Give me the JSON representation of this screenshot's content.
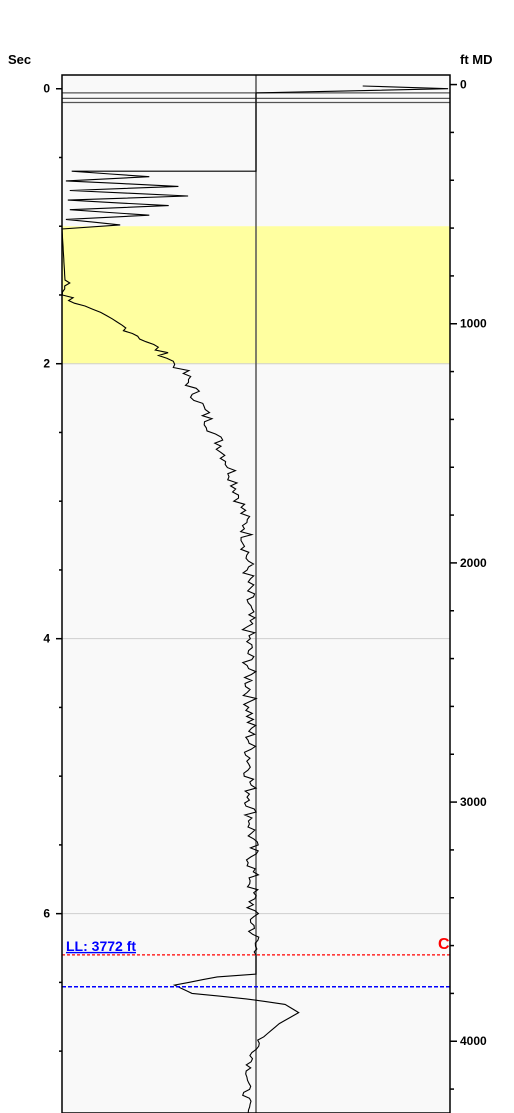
{
  "chart_data": {
    "type": "line",
    "left_axis": {
      "unit": "Sec",
      "range": [
        -0.1,
        7.45
      ],
      "major_ticks": [
        0,
        2,
        4,
        6
      ],
      "tick_labels": [
        "0",
        "2",
        "4",
        "6"
      ],
      "minor_step": 0.5
    },
    "right_axis": {
      "unit": "ft MD",
      "range": [
        -40,
        4300
      ],
      "major_ticks": [
        0,
        1000,
        2000,
        3000,
        4000
      ],
      "tick_labels": [
        "0",
        "1000",
        "2000",
        "3000",
        "4000"
      ],
      "minor_step": 200
    },
    "shaded_zone": {
      "from_sec": 1.0,
      "to_sec": 2.0,
      "color": "#ffffa0"
    },
    "gridlines_sec": [
      2,
      4,
      6
    ],
    "baseline_x": 0.0,
    "x_range": [
      -1.0,
      1.0
    ],
    "series": [
      {
        "points": [
          [
            0.55,
            -0.02
          ],
          [
            0.99,
            0.0
          ],
          [
            0.0,
            0.03
          ],
          [
            0.0,
            0.6
          ],
          [
            -0.95,
            0.6
          ],
          [
            -0.55,
            0.64
          ],
          [
            -0.98,
            0.67
          ],
          [
            -0.4,
            0.71
          ],
          [
            -0.96,
            0.74
          ],
          [
            -0.35,
            0.78
          ],
          [
            -0.97,
            0.81
          ],
          [
            -0.45,
            0.85
          ],
          [
            -0.96,
            0.88
          ],
          [
            -0.55,
            0.92
          ],
          [
            -0.98,
            0.95
          ],
          [
            -0.7,
            0.99
          ],
          [
            -1.0,
            1.02
          ],
          [
            -0.98,
            1.5
          ],
          [
            -0.9,
            1.58
          ],
          [
            -0.8,
            1.65
          ],
          [
            -0.7,
            1.72
          ],
          [
            -0.6,
            1.8
          ],
          [
            -0.52,
            1.88
          ],
          [
            -0.45,
            1.96
          ],
          [
            -0.38,
            2.05
          ],
          [
            -0.32,
            2.2
          ],
          [
            -0.25,
            2.4
          ],
          [
            -0.18,
            2.6
          ],
          [
            -0.12,
            2.8
          ],
          [
            -0.08,
            3.0
          ],
          [
            -0.05,
            3.2
          ],
          [
            -0.04,
            3.5
          ],
          [
            -0.04,
            4.0
          ],
          [
            -0.03,
            4.5
          ],
          [
            -0.03,
            5.0
          ],
          [
            -0.02,
            5.5
          ],
          [
            -0.02,
            6.0
          ],
          [
            0.0,
            6.3
          ],
          [
            0.0,
            6.44
          ],
          [
            -0.2,
            6.46
          ],
          [
            -0.42,
            6.52
          ],
          [
            -0.33,
            6.58
          ],
          [
            -0.05,
            6.62
          ],
          [
            0.15,
            6.66
          ],
          [
            0.22,
            6.72
          ],
          [
            0.12,
            6.8
          ],
          [
            0.02,
            6.92
          ],
          [
            -0.03,
            7.1
          ],
          [
            -0.05,
            7.3
          ],
          [
            -0.04,
            7.45
          ]
        ]
      }
    ],
    "markers": [
      {
        "label": "LL: 3772 ft",
        "depth_ft": 3772,
        "color": "#0000ff"
      },
      {
        "label": "C",
        "time_sec": 6.3,
        "color": "#ff0000"
      }
    ],
    "colors": {
      "trace": "#000000",
      "frame": "#000000",
      "background": "#f9f9f9",
      "grid": "#cfcfcf"
    }
  }
}
